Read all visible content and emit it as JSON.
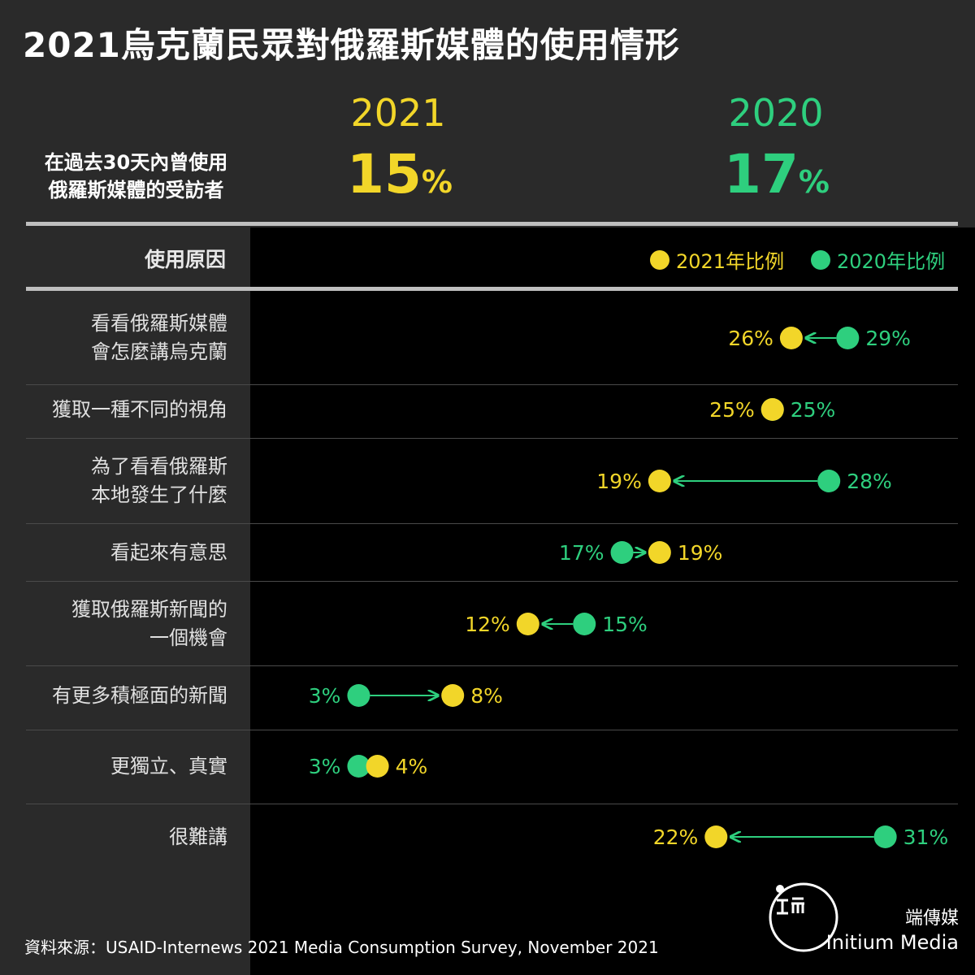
{
  "title": "2021烏克蘭民眾對俄羅斯媒體的使用情形",
  "summary": {
    "label_line1": "在過去30天內曾使用",
    "label_line2": "俄羅斯媒體的受訪者",
    "year_2021": "2021",
    "year_2020": "2020",
    "value_2021": "15",
    "value_2020": "17",
    "pct_sign": "%"
  },
  "header": {
    "reasons_label": "使用原因",
    "legend_2021": "2021年比例",
    "legend_2020": "2020年比例"
  },
  "colors": {
    "y2021": "#f2d629",
    "y2020": "#2ecf7e",
    "background": "#2a2a2a",
    "plot_background": "#000000"
  },
  "chart_data": {
    "type": "dumbbell",
    "title": "2021烏克蘭民眾對俄羅斯媒體的使用情形",
    "series": [
      {
        "name": "2021年比例",
        "color": "#f2d629"
      },
      {
        "name": "2020年比例",
        "color": "#2ecf7e"
      }
    ],
    "categories": [
      "看看俄羅斯媒體\n會怎麼講烏克蘭",
      "獲取一種不同的視角",
      "為了看看俄羅斯\n本地發生了什麼",
      "看起來有意思",
      "獲取俄羅斯新聞的\n一個機會",
      "有更多積極面的新聞",
      "更獨立、真實",
      "很難講"
    ],
    "values_2021": [
      26,
      25,
      19,
      19,
      12,
      8,
      4,
      22
    ],
    "values_2020": [
      29,
      25,
      28,
      17,
      15,
      3,
      3,
      31
    ],
    "xlim": [
      0,
      35
    ],
    "grid": false,
    "legend": "top-right"
  },
  "footer": {
    "source": "資料來源：USAID-Internews 2021 Media Consumption Survey, November 2021",
    "brand_cn": "端傳媒",
    "brand_en": "Initium Media"
  }
}
